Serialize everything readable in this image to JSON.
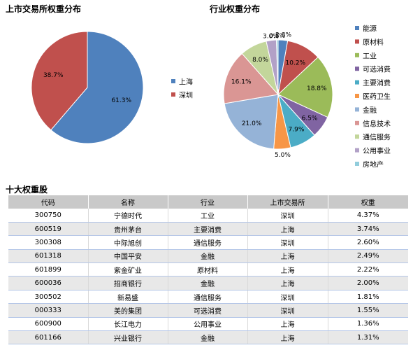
{
  "chart_data": [
    {
      "type": "pie",
      "title": "上市交易所权重分布",
      "series": [
        {
          "name": "上海",
          "value": 61.3,
          "label": "61.3%",
          "color": "#4f81bd"
        },
        {
          "name": "深圳",
          "value": 38.7,
          "label": "38.7%",
          "color": "#c0504d"
        }
      ],
      "legend_position": "right"
    },
    {
      "type": "pie",
      "title": "行业权重分布",
      "series": [
        {
          "name": "能源",
          "value": 2.8,
          "label": "2.8%",
          "color": "#4f81bd"
        },
        {
          "name": "原材料",
          "value": 10.2,
          "label": "10.2%",
          "color": "#c0504d"
        },
        {
          "name": "工业",
          "value": 18.8,
          "label": "18.8%",
          "color": "#9bbb59"
        },
        {
          "name": "可选消费",
          "value": 6.5,
          "label": "6.5%",
          "color": "#8064a2"
        },
        {
          "name": "主要消费",
          "value": 7.9,
          "label": "7.9%",
          "color": "#4bacc6"
        },
        {
          "name": "医药卫生",
          "value": 5.0,
          "label": "5.0%",
          "color": "#f79646"
        },
        {
          "name": "金融",
          "value": 21.0,
          "label": "21.0%",
          "color": "#95b3d7"
        },
        {
          "name": "信息技术",
          "value": 16.1,
          "label": "16.1%",
          "color": "#da9694"
        },
        {
          "name": "通信服务",
          "value": 8.0,
          "label": "8.0%",
          "color": "#c3d69b"
        },
        {
          "name": "公用事业",
          "value": 3.0,
          "label": "3.0%",
          "color": "#b2a1c7"
        },
        {
          "name": "房地产",
          "value": 0.5,
          "label": "0.5%",
          "color": "#92cddc"
        }
      ],
      "legend_position": "right"
    },
    {
      "type": "table",
      "title": "十大权重股",
      "columns": [
        "代码",
        "名称",
        "行业",
        "上市交易所",
        "权重"
      ],
      "rows": [
        [
          "300750",
          "宁德时代",
          "工业",
          "深圳",
          "4.37%"
        ],
        [
          "600519",
          "贵州茅台",
          "主要消费",
          "上海",
          "3.74%"
        ],
        [
          "300308",
          "中际旭创",
          "通信服务",
          "深圳",
          "2.60%"
        ],
        [
          "601318",
          "中国平安",
          "金融",
          "上海",
          "2.49%"
        ],
        [
          "601899",
          "紫金矿业",
          "原材料",
          "上海",
          "2.22%"
        ],
        [
          "600036",
          "招商银行",
          "金融",
          "上海",
          "2.00%"
        ],
        [
          "300502",
          "新易盛",
          "通信服务",
          "深圳",
          "1.81%"
        ],
        [
          "000333",
          "美的集团",
          "可选消费",
          "深圳",
          "1.55%"
        ],
        [
          "600900",
          "长江电力",
          "公用事业",
          "上海",
          "1.36%"
        ],
        [
          "601166",
          "兴业银行",
          "金融",
          "上海",
          "1.31%"
        ]
      ]
    }
  ]
}
